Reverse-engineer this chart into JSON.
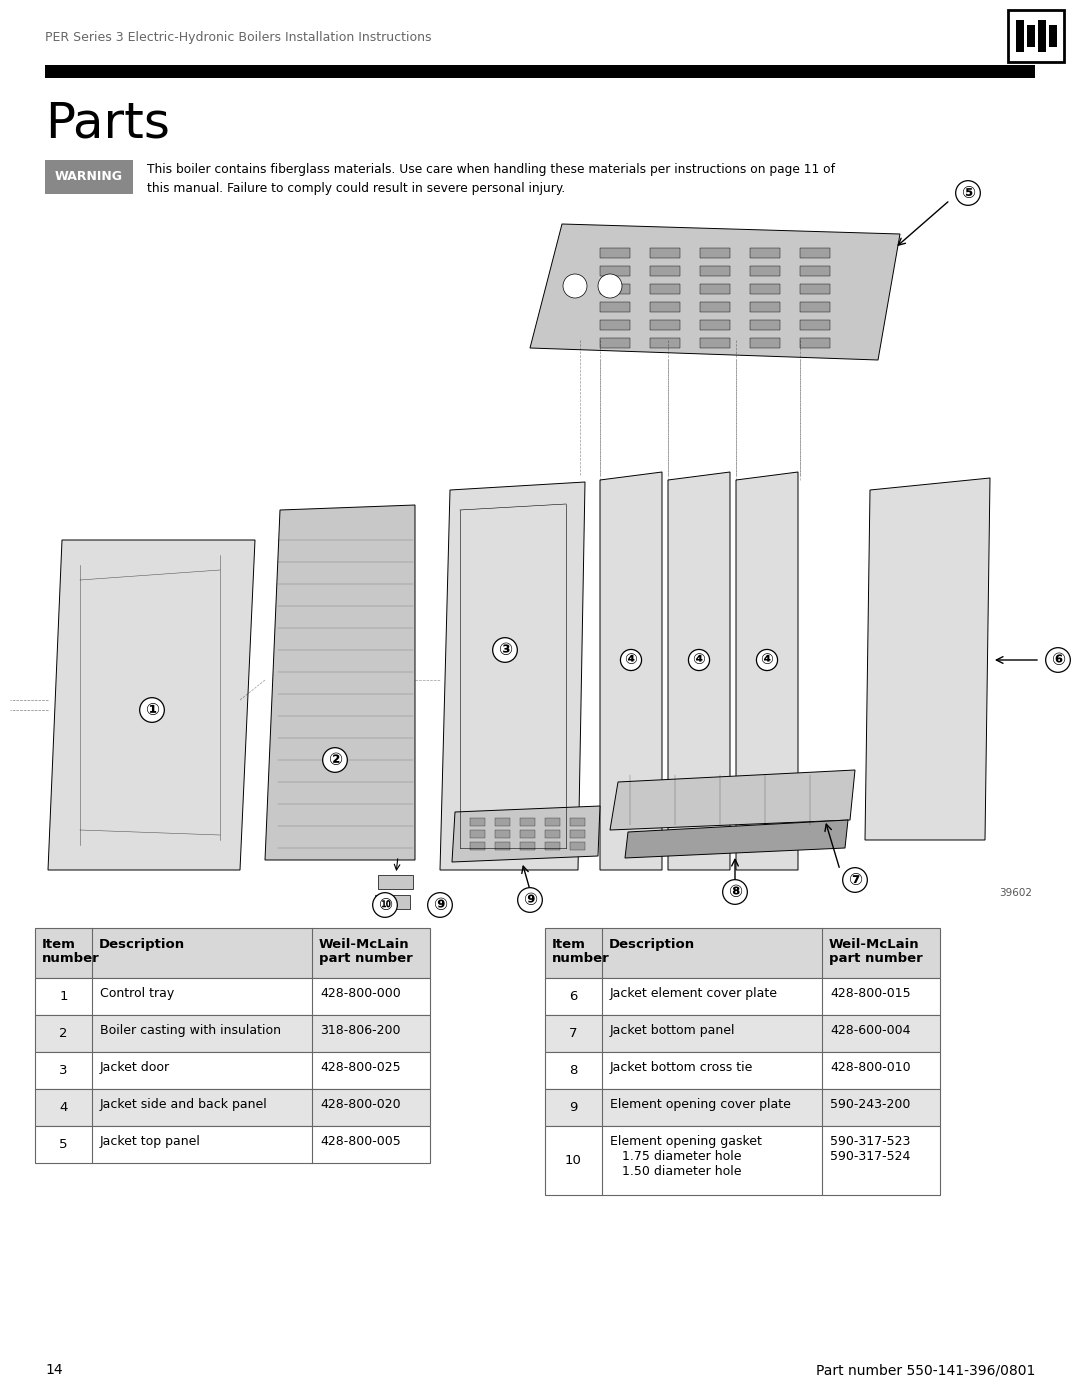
{
  "page_title": "PER Series 3 Electric-Hydronic Boilers Installation Instructions",
  "section_title": "Parts",
  "warning_text": "This boiler contains fiberglass materials. Use care when handling these materials per instructions on page 11 of\nthis manual. Failure to comply could result in severe personal injury.",
  "warning_label": "WARNING",
  "page_number": "14",
  "part_number_footer": "Part number 550-141-396/0801",
  "diagram_ref": "39602",
  "table_left": [
    {
      "item": "1",
      "description": "Control tray",
      "part_number": "428-800-000"
    },
    {
      "item": "2",
      "description": "Boiler casting with insulation",
      "part_number": "318-806-200"
    },
    {
      "item": "3",
      "description": "Jacket door",
      "part_number": "428-800-025"
    },
    {
      "item": "4",
      "description": "Jacket side and back panel",
      "part_number": "428-800-020"
    },
    {
      "item": "5",
      "description": "Jacket top panel",
      "part_number": "428-800-005"
    }
  ],
  "table_right": [
    {
      "item": "6",
      "description": "Jacket element cover plate",
      "part_number": "428-800-015"
    },
    {
      "item": "7",
      "description": "Jacket bottom panel",
      "part_number": "428-600-004"
    },
    {
      "item": "8",
      "description": "Jacket bottom cross tie",
      "part_number": "428-800-010"
    },
    {
      "item": "9",
      "description": "Element opening cover plate",
      "part_number": "590-243-200"
    },
    {
      "item": "10",
      "description": "Element opening gasket\n   1.75 diameter hole\n   1.50 diameter hole",
      "part_number": "590-317-523\n590-317-524"
    }
  ],
  "header_bg": "#d8d8d8",
  "row_odd_bg": "#ffffff",
  "row_even_bg": "#e4e4e4",
  "table_border": "#666666",
  "bg_color": "#ffffff",
  "header_title_color": "#555555",
  "black": "#000000",
  "white": "#ffffff",
  "gray_logo": "#888888",
  "gray_warn": "#888888",
  "gray_diagram": "#c8c8c8",
  "gray_dark": "#a0a0a0",
  "gray_light": "#dedede"
}
